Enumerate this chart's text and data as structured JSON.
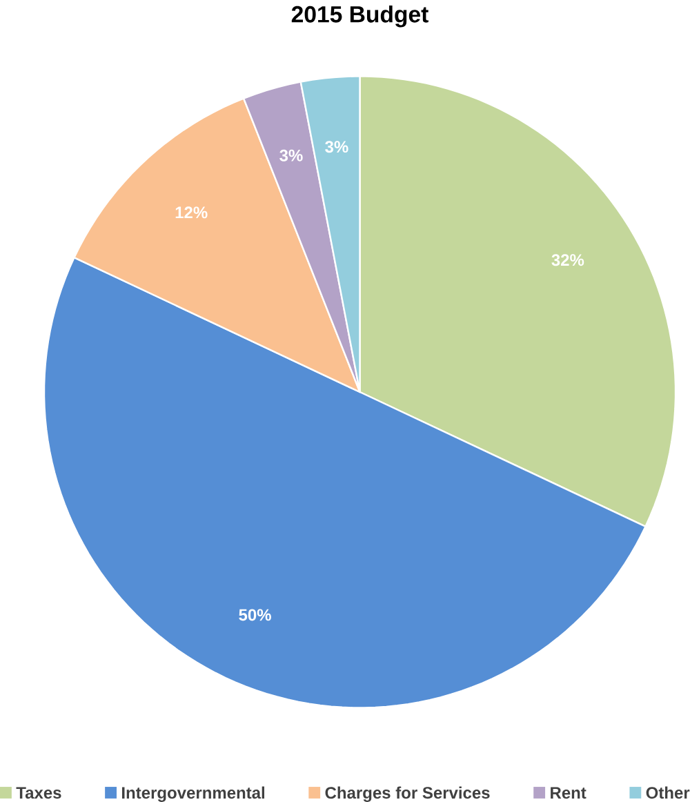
{
  "chart_data": {
    "type": "pie",
    "title": "2015 Budget",
    "categories": [
      "Taxes",
      "Intergovernmental",
      "Charges for Services",
      "Rent",
      "Other"
    ],
    "values": [
      32,
      50,
      12,
      3,
      3
    ],
    "colors": [
      "#c4d79b",
      "#558ed5",
      "#fac090",
      "#b3a2c7",
      "#93cddd"
    ],
    "value_labels": [
      "32%",
      "50%",
      "12%",
      "3%",
      "3%"
    ],
    "legend": "bottom"
  }
}
